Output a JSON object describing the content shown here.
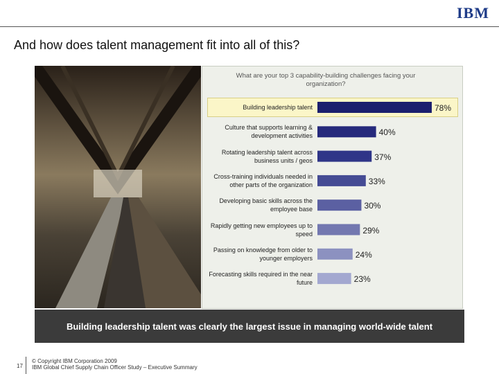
{
  "header": {
    "logo": "IBM",
    "title": "And how does talent management fit into all of this?"
  },
  "chart_data": {
    "type": "bar",
    "orientation": "horizontal",
    "title": "What are your top 3 capability-building challenges facing your organization?",
    "categories": [
      "Building leadership talent",
      "Culture that supports learning & development activities",
      "Rotating leadership talent across business units / geos",
      "Cross-training individuals needed in other parts of the organization",
      "Developing basic skills across the employee base",
      "Rapidly getting new employees up to speed",
      "Passing on knowledge from older to younger employers",
      "Forecasting skills required in the near future"
    ],
    "values": [
      78,
      40,
      37,
      33,
      30,
      29,
      24,
      23
    ],
    "value_labels": [
      "78%",
      "40%",
      "37%",
      "33%",
      "30%",
      "29%",
      "24%",
      "23%"
    ],
    "colors": [
      "#1c1f6e",
      "#262a7c",
      "#2f3588",
      "#454b94",
      "#5b60a2",
      "#7378b0",
      "#8c91c0",
      "#a3a8d0"
    ]
  },
  "banner": "Building leadership talent was clearly the largest issue in managing world-wide talent",
  "footer": {
    "page": "17",
    "copyright": "© Copyright IBM Corporation 2009",
    "study": "IBM Global Chief Supply Chain Officer Study – Executive Summary"
  }
}
